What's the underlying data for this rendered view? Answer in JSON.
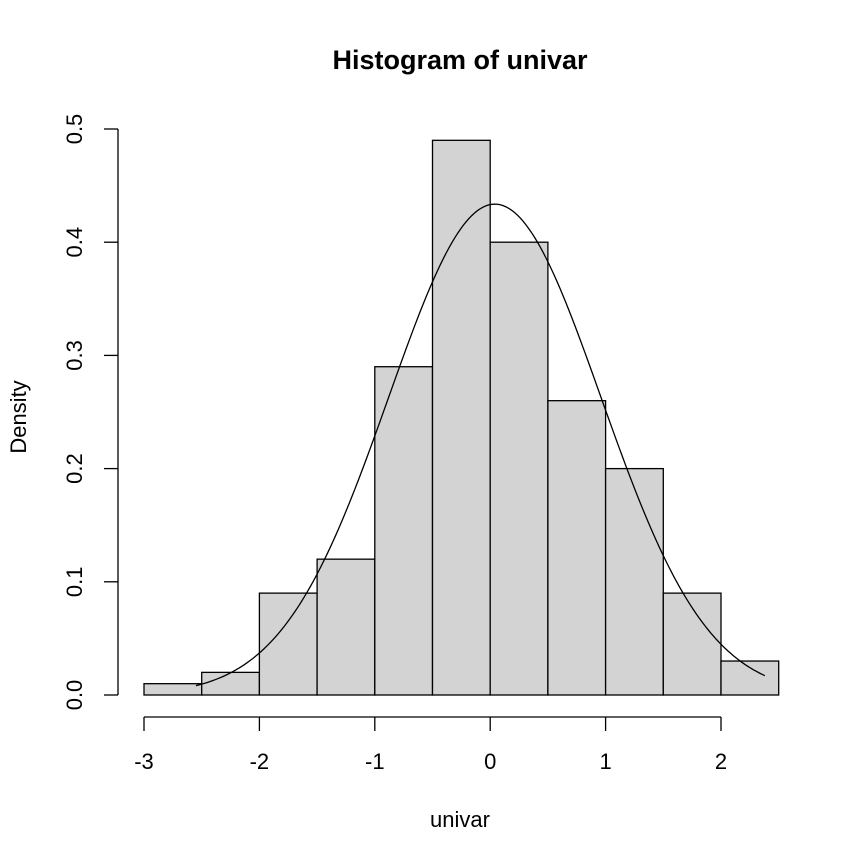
{
  "chart_data": {
    "type": "bar",
    "title": "Histogram of univar",
    "xlabel": "univar",
    "ylabel": "Density",
    "xlim": [
      -3,
      2.5
    ],
    "ylim": [
      0,
      0.5
    ],
    "bin_edges": [
      -3,
      -2.5,
      -2,
      -1.5,
      -1,
      -0.5,
      0,
      0.5,
      1,
      1.5,
      2,
      2.5
    ],
    "values": [
      0.01,
      0.02,
      0.09,
      0.12,
      0.29,
      0.49,
      0.4,
      0.26,
      0.2,
      0.09,
      0.03
    ],
    "x_ticks": [
      -3,
      -2,
      -1,
      0,
      1,
      2
    ],
    "x_tick_labels": [
      "-3",
      "-2",
      "-1",
      "0",
      "1",
      "2"
    ],
    "y_ticks": [
      0,
      0.1,
      0.2,
      0.3,
      0.4,
      0.5
    ],
    "y_tick_labels": [
      "0.0",
      "0.1",
      "0.2",
      "0.3",
      "0.4",
      "0.5"
    ],
    "bar_color": "#d3d3d3",
    "density_curve": {
      "mean": 0.04,
      "sd": 0.92,
      "x_range": [
        -2.55,
        2.38
      ]
    },
    "grid": false
  }
}
